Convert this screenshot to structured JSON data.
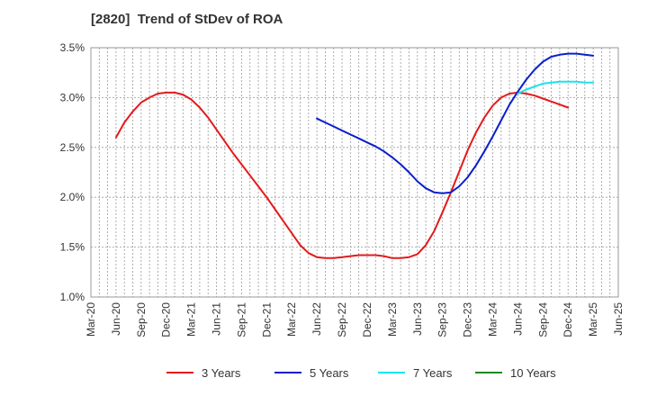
{
  "chart_data": {
    "type": "line",
    "title": "[2820]  Trend of StDev of ROA",
    "xlabel": "",
    "ylabel": "",
    "ylim": [
      1.0,
      3.5
    ],
    "y_ticks": [
      "1.0%",
      "1.5%",
      "2.0%",
      "2.5%",
      "3.0%",
      "3.5%"
    ],
    "x_ticks": [
      "Mar-20",
      "Jun-20",
      "Sep-20",
      "Dec-20",
      "Mar-21",
      "Jun-21",
      "Sep-21",
      "Dec-21",
      "Mar-22",
      "Jun-22",
      "Sep-22",
      "Dec-22",
      "Mar-23",
      "Jun-23",
      "Sep-23",
      "Dec-23",
      "Mar-24",
      "Jun-24",
      "Sep-24",
      "Dec-24",
      "Mar-25",
      "Jun-25"
    ],
    "grid": true,
    "legend_position": "bottom",
    "series": [
      {
        "name": "3 Years",
        "color": "#e31a1c",
        "points": [
          [
            "Jun-20",
            2.6
          ],
          [
            "Jul-20",
            2.75
          ],
          [
            "Aug-20",
            2.86
          ],
          [
            "Sep-20",
            2.95
          ],
          [
            "Oct-20",
            3.0
          ],
          [
            "Nov-20",
            3.04
          ],
          [
            "Dec-20",
            3.05
          ],
          [
            "Jan-21",
            3.05
          ],
          [
            "Feb-21",
            3.03
          ],
          [
            "Mar-21",
            2.98
          ],
          [
            "Apr-21",
            2.9
          ],
          [
            "May-21",
            2.8
          ],
          [
            "Jun-21",
            2.68
          ],
          [
            "Jul-21",
            2.56
          ],
          [
            "Aug-21",
            2.44
          ],
          [
            "Sep-21",
            2.33
          ],
          [
            "Oct-21",
            2.22
          ],
          [
            "Nov-21",
            2.11
          ],
          [
            "Dec-21",
            2.0
          ],
          [
            "Jan-22",
            1.88
          ],
          [
            "Feb-22",
            1.76
          ],
          [
            "Mar-22",
            1.64
          ],
          [
            "Apr-22",
            1.52
          ],
          [
            "May-22",
            1.44
          ],
          [
            "Jun-22",
            1.4
          ],
          [
            "Jul-22",
            1.39
          ],
          [
            "Aug-22",
            1.39
          ],
          [
            "Sep-22",
            1.4
          ],
          [
            "Oct-22",
            1.41
          ],
          [
            "Nov-22",
            1.42
          ],
          [
            "Dec-22",
            1.42
          ],
          [
            "Jan-23",
            1.42
          ],
          [
            "Feb-23",
            1.41
          ],
          [
            "Mar-23",
            1.39
          ],
          [
            "Apr-23",
            1.39
          ],
          [
            "May-23",
            1.4
          ],
          [
            "Jun-23",
            1.43
          ],
          [
            "Jul-23",
            1.52
          ],
          [
            "Aug-23",
            1.66
          ],
          [
            "Sep-23",
            1.85
          ],
          [
            "Oct-23",
            2.05
          ],
          [
            "Nov-23",
            2.26
          ],
          [
            "Dec-23",
            2.47
          ],
          [
            "Jan-24",
            2.65
          ],
          [
            "Feb-24",
            2.8
          ],
          [
            "Mar-24",
            2.92
          ],
          [
            "Apr-24",
            3.0
          ],
          [
            "May-24",
            3.04
          ],
          [
            "Jun-24",
            3.05
          ],
          [
            "Jul-24",
            3.04
          ],
          [
            "Aug-24",
            3.02
          ],
          [
            "Sep-24",
            2.99
          ],
          [
            "Oct-24",
            2.96
          ],
          [
            "Nov-24",
            2.93
          ],
          [
            "Dec-24",
            2.9
          ]
        ]
      },
      {
        "name": "5 Years",
        "color": "#0a1fcc",
        "points": [
          [
            "Jun-22",
            2.79
          ],
          [
            "Jul-22",
            2.75
          ],
          [
            "Aug-22",
            2.71
          ],
          [
            "Sep-22",
            2.67
          ],
          [
            "Oct-22",
            2.63
          ],
          [
            "Nov-22",
            2.59
          ],
          [
            "Dec-22",
            2.55
          ],
          [
            "Jan-23",
            2.51
          ],
          [
            "Feb-23",
            2.46
          ],
          [
            "Mar-23",
            2.4
          ],
          [
            "Apr-23",
            2.33
          ],
          [
            "May-23",
            2.25
          ],
          [
            "Jun-23",
            2.16
          ],
          [
            "Jul-23",
            2.09
          ],
          [
            "Aug-23",
            2.05
          ],
          [
            "Sep-23",
            2.04
          ],
          [
            "Oct-23",
            2.05
          ],
          [
            "Nov-23",
            2.11
          ],
          [
            "Dec-23",
            2.2
          ],
          [
            "Jan-24",
            2.32
          ],
          [
            "Feb-24",
            2.46
          ],
          [
            "Mar-24",
            2.61
          ],
          [
            "Apr-24",
            2.77
          ],
          [
            "May-24",
            2.93
          ],
          [
            "Jun-24",
            3.06
          ],
          [
            "Jul-24",
            3.18
          ],
          [
            "Aug-24",
            3.28
          ],
          [
            "Sep-24",
            3.36
          ],
          [
            "Oct-24",
            3.41
          ],
          [
            "Nov-24",
            3.43
          ],
          [
            "Dec-24",
            3.44
          ],
          [
            "Jan-25",
            3.44
          ],
          [
            "Feb-25",
            3.43
          ],
          [
            "Mar-25",
            3.42
          ]
        ]
      },
      {
        "name": "7 Years",
        "color": "#19e3f0",
        "points": [
          [
            "Jun-24",
            3.04
          ],
          [
            "Jul-24",
            3.08
          ],
          [
            "Aug-24",
            3.11
          ],
          [
            "Sep-24",
            3.14
          ],
          [
            "Oct-24",
            3.15
          ],
          [
            "Nov-24",
            3.16
          ],
          [
            "Dec-24",
            3.16
          ],
          [
            "Jan-25",
            3.16
          ],
          [
            "Feb-25",
            3.15
          ],
          [
            "Mar-25",
            3.15
          ]
        ]
      },
      {
        "name": "10 Years",
        "color": "#1f8a1f",
        "points": []
      }
    ]
  }
}
